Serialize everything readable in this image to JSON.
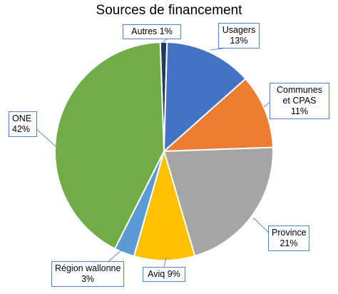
{
  "chart_data": {
    "type": "pie",
    "title": "Sources de financement",
    "slices": [
      {
        "label": "Autres",
        "value": 1,
        "display": "Autres 1%",
        "color": "#1f3864"
      },
      {
        "label": "Usagers",
        "value": 13,
        "display": "13%",
        "color": "#4472c4"
      },
      {
        "label": "Communes et CPAS",
        "value": 11,
        "display": "11%",
        "color": "#ed7d31"
      },
      {
        "label": "Province",
        "value": 21,
        "display": "21%",
        "color": "#a5a5a5"
      },
      {
        "label": "Aviq",
        "value": 9,
        "display": "Aviq 9%",
        "color": "#ffc000"
      },
      {
        "label": "Région wallonne",
        "value": 3,
        "display": "3%",
        "color": "#5b9bd5"
      },
      {
        "label": "ONE",
        "value": 42,
        "display": "42%",
        "color": "#70ad47"
      }
    ]
  }
}
